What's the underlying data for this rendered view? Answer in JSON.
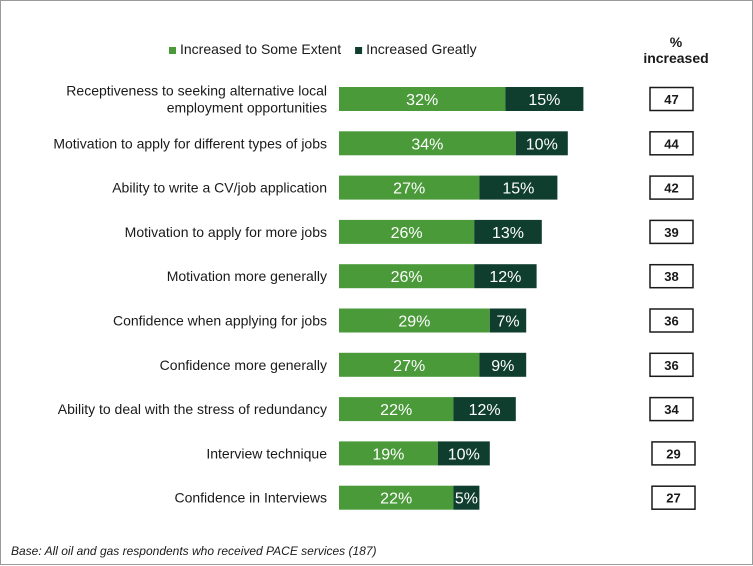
{
  "chart_data": {
    "type": "bar",
    "orientation": "horizontal",
    "stacked": true,
    "categories": [
      [
        "Receptiveness to seeking alternative local",
        "employment opportunities"
      ],
      [
        "Motivation to apply for different types of jobs"
      ],
      [
        "Ability to write a CV/job application"
      ],
      [
        "Motivation to apply for more jobs"
      ],
      [
        "Motivation more generally"
      ],
      [
        "Confidence when applying for jobs"
      ],
      [
        "Confidence more generally"
      ],
      [
        "Ability to deal with the stress of redundancy"
      ],
      [
        "Interview technique"
      ],
      [
        "Confidence in Interviews"
      ]
    ],
    "series": [
      {
        "name": "Increased to Some Extent",
        "color": "#4a9a3a",
        "values": [
          32,
          34,
          27,
          26,
          26,
          29,
          27,
          22,
          19,
          22
        ]
      },
      {
        "name": "Increased Greatly",
        "color": "#0f3d2e",
        "values": [
          15,
          10,
          15,
          13,
          12,
          7,
          9,
          12,
          10,
          5
        ]
      }
    ],
    "value_suffix": "%",
    "legend_position": "top",
    "grid": false,
    "xlim": [
      0,
      100
    ],
    "totals_header": [
      "%",
      "increased"
    ],
    "totals": [
      47,
      44,
      42,
      39,
      38,
      36,
      36,
      34,
      29,
      27
    ]
  },
  "footnote": "Base: All oil and gas respondents who  received PACE services (187)"
}
